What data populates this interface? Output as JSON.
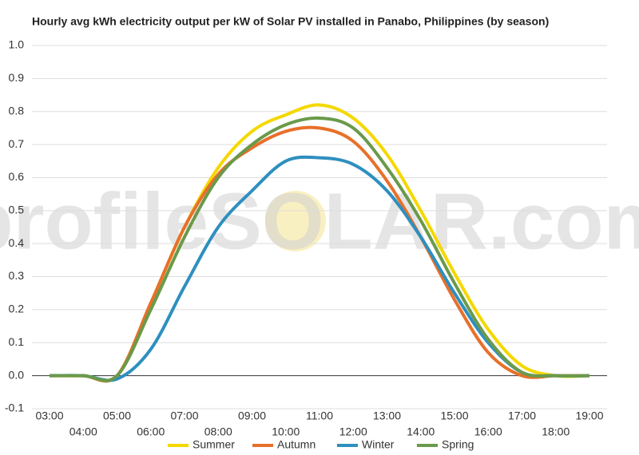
{
  "chart_data": {
    "type": "line",
    "title": "Hourly avg kWh electricity output per kW of Solar PV installed in Panabo, Philippines (by season)",
    "watermark": "profileSOLAR.com",
    "categories": [
      "03:00",
      "04:00",
      "05:00",
      "06:00",
      "07:00",
      "08:00",
      "09:00",
      "10:00",
      "11:00",
      "12:00",
      "13:00",
      "14:00",
      "15:00",
      "16:00",
      "17:00",
      "18:00",
      "19:00"
    ],
    "series": [
      {
        "name": "Summer",
        "color": "#f5d800",
        "values": [
          0,
          0,
          0,
          0.22,
          0.45,
          0.63,
          0.74,
          0.79,
          0.82,
          0.78,
          0.67,
          0.5,
          0.31,
          0.14,
          0.03,
          0,
          0
        ]
      },
      {
        "name": "Autumn",
        "color": "#e8702a",
        "values": [
          0,
          0,
          0,
          0.22,
          0.45,
          0.61,
          0.69,
          0.74,
          0.75,
          0.71,
          0.59,
          0.42,
          0.23,
          0.07,
          0,
          0,
          0
        ]
      },
      {
        "name": "Winter",
        "color": "#2e8fbf",
        "values": [
          0,
          0,
          -0.01,
          0.08,
          0.27,
          0.45,
          0.56,
          0.65,
          0.66,
          0.64,
          0.56,
          0.42,
          0.25,
          0.1,
          0.01,
          0,
          0
        ]
      },
      {
        "name": "Spring",
        "color": "#6a9a4a",
        "values": [
          0,
          0,
          0,
          0.2,
          0.42,
          0.6,
          0.7,
          0.76,
          0.78,
          0.75,
          0.63,
          0.47,
          0.28,
          0.11,
          0.01,
          0,
          0
        ]
      }
    ],
    "ylim": [
      -0.1,
      1.0
    ],
    "yticks": [
      -0.1,
      {
        "value": 0.0,
        "label": "0.0"
      },
      0.1,
      0.2,
      0.3,
      0.4,
      0.5,
      0.6,
      0.7,
      0.8,
      0.9,
      {
        "value": 1.0,
        "label": "1.0"
      }
    ],
    "grid": true
  }
}
